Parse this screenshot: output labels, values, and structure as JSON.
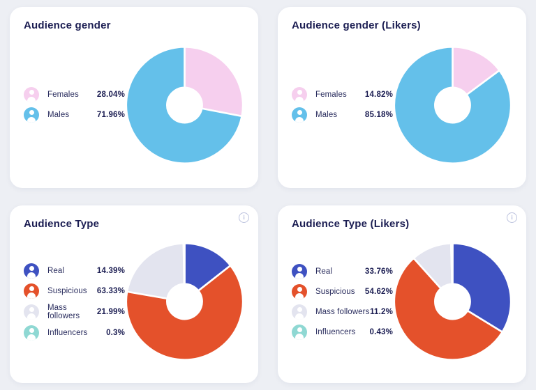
{
  "page": {
    "background": "#edeff4",
    "card_background": "#ffffff"
  },
  "ui": {
    "title_color": "#1b1d52",
    "label_color": "#2a2d5e",
    "info_icon_color": "#bcc2de",
    "info_glyph": "i"
  },
  "chart_data": [
    {
      "type": "pie",
      "variant": "donut",
      "title": "Audience gender",
      "has_info_icon": false,
      "legend_position": "left",
      "segments": [
        {
          "label": "Females",
          "value": 28.04,
          "display": "28.04%",
          "color": "#f6cfee"
        },
        {
          "label": "Males",
          "value": 71.96,
          "display": "71.96%",
          "color": "#64c0ea"
        }
      ]
    },
    {
      "type": "pie",
      "variant": "donut",
      "title": "Audience gender (Likers)",
      "has_info_icon": false,
      "legend_position": "left",
      "segments": [
        {
          "label": "Females",
          "value": 14.82,
          "display": "14.82%",
          "color": "#f6cfee"
        },
        {
          "label": "Males",
          "value": 85.18,
          "display": "85.18%",
          "color": "#64c0ea"
        }
      ]
    },
    {
      "type": "pie",
      "variant": "donut",
      "title": "Audience Type",
      "has_info_icon": true,
      "legend_position": "left",
      "segments": [
        {
          "label": "Real",
          "value": 14.39,
          "display": "14.39%",
          "color": "#3e51c1"
        },
        {
          "label": "Suspicious",
          "value": 63.33,
          "display": "63.33%",
          "color": "#e4512b"
        },
        {
          "label": "Mass followers",
          "value": 21.99,
          "display": "21.99%",
          "color": "#e3e4ef"
        },
        {
          "label": "Influencers",
          "value": 0.3,
          "display": "0.3%",
          "color": "#8fd8d3"
        }
      ]
    },
    {
      "type": "pie",
      "variant": "donut",
      "title": "Audience Type (Likers)",
      "has_info_icon": true,
      "legend_position": "left",
      "segments": [
        {
          "label": "Real",
          "value": 33.76,
          "display": "33.76%",
          "color": "#3e51c1"
        },
        {
          "label": "Suspicious",
          "value": 54.62,
          "display": "54.62%",
          "color": "#e4512b"
        },
        {
          "label": "Mass followers",
          "value": 11.2,
          "display": "11.2%",
          "color": "#e3e4ef"
        },
        {
          "label": "Influencers",
          "value": 0.43,
          "display": "0.43%",
          "color": "#8fd8d3"
        }
      ]
    }
  ]
}
